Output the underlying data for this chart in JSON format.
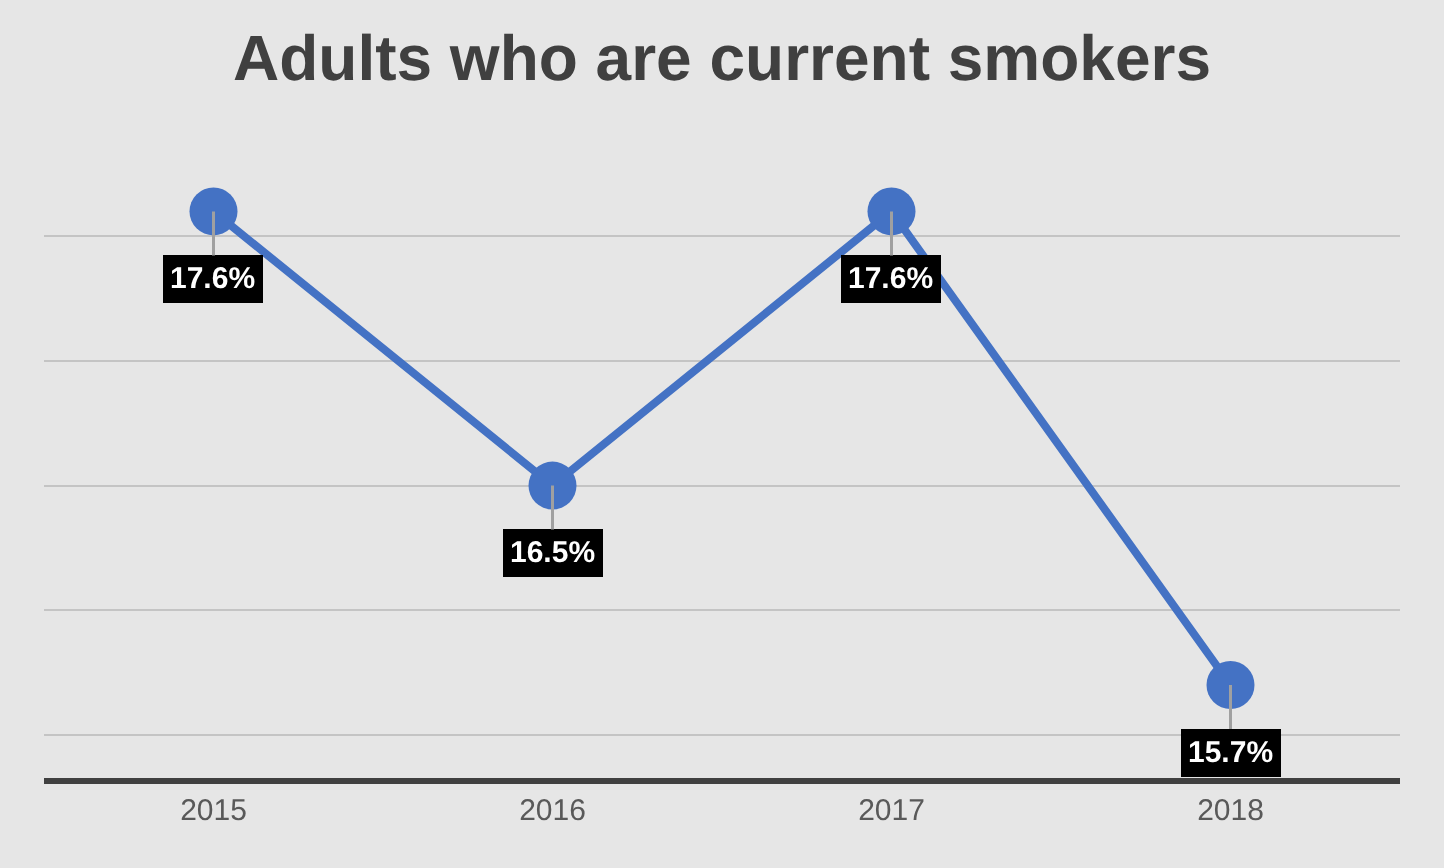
{
  "chart_data": {
    "type": "line",
    "title": "Adults who are current smokers",
    "categories": [
      "2015",
      "2016",
      "2017",
      "2018"
    ],
    "series": [
      {
        "color": "#4472c4",
        "values": [
          17.6,
          16.5,
          17.6,
          15.7
        ],
        "value_labels": [
          "17.6%",
          "16.5%",
          "17.6%",
          "15.7%"
        ]
      }
    ],
    "grid": "y",
    "tick_labels": "x",
    "marker": "circle"
  }
}
